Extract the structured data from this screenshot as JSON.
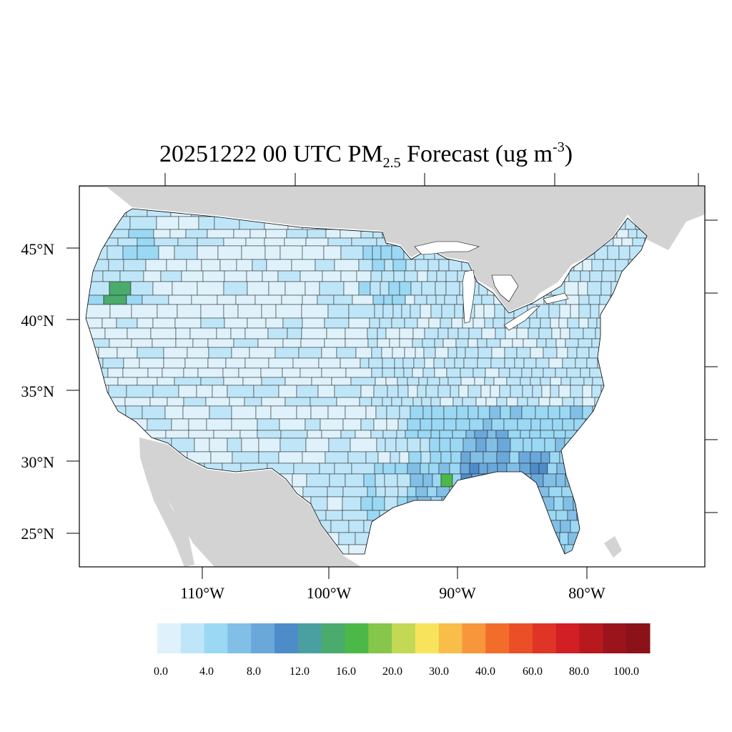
{
  "title": {
    "date": "20251222",
    "hour": "00 UTC",
    "variable": "PM",
    "subscript": "2.5",
    "rest": "Forecast (ug m",
    "superscript": "-3",
    "close": ")"
  },
  "map": {
    "lat_labels": [
      "45°N",
      "40°N",
      "35°N",
      "30°N",
      "25°N"
    ],
    "lon_labels": [
      "110°W",
      "100°W",
      "90°W",
      "80°W"
    ],
    "colors": {
      "land_outside": "#d3d3d3",
      "water": "#ffffff",
      "frame": "#000000"
    }
  },
  "colorbar": {
    "colors": [
      "#dff2fb",
      "#bfe6f8",
      "#9bd8f4",
      "#82bfe6",
      "#6aa8da",
      "#4e8cc9",
      "#4a9fa0",
      "#4aab6c",
      "#4cb848",
      "#86c64b",
      "#c3d855",
      "#f7e45c",
      "#f9bd4a",
      "#f7963a",
      "#f26d2a",
      "#ea4f28",
      "#e03426",
      "#d21f26",
      "#b8191f",
      "#9c141b",
      "#8b1218"
    ],
    "labels": [
      "0.0",
      "4.0",
      "8.0",
      "12.0",
      "16.0",
      "20.0",
      "30.0",
      "40.0",
      "60.0",
      "80.0",
      "100.0"
    ]
  }
}
